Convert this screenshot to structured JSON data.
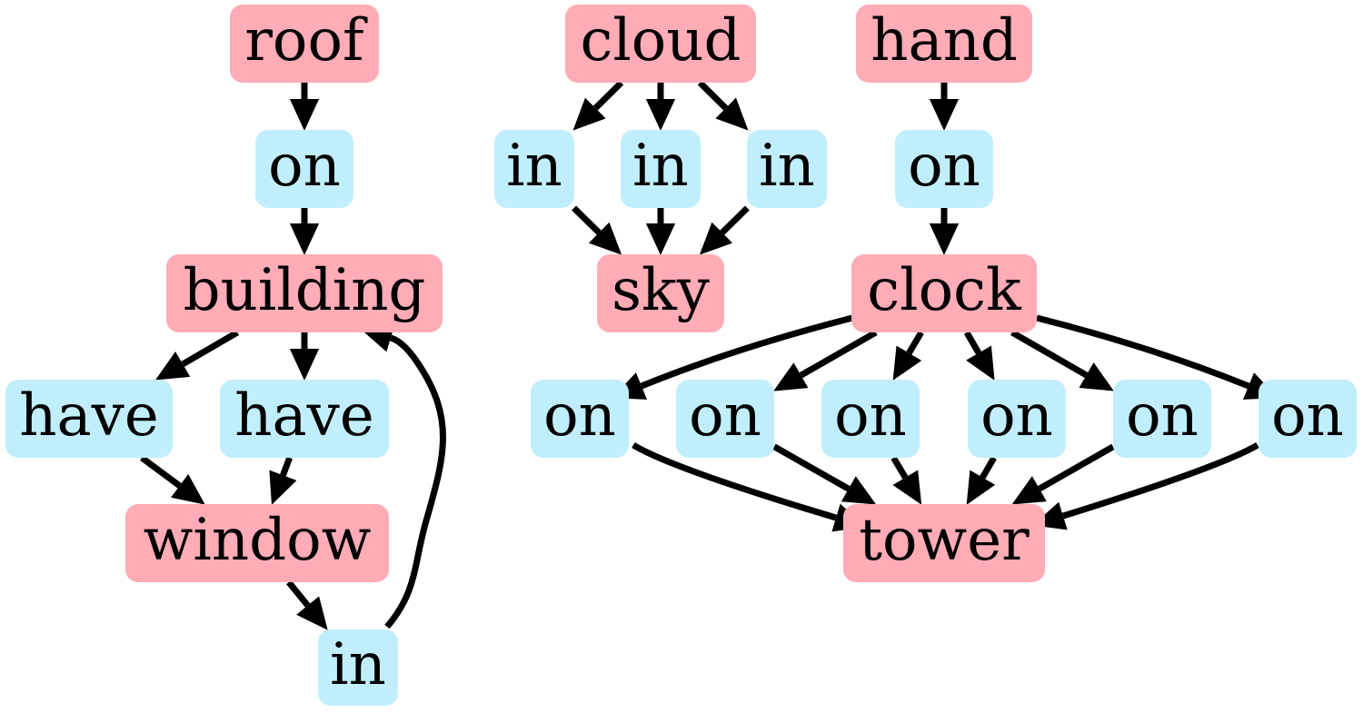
{
  "colors": {
    "object": "#ffacb6",
    "relation": "#c1eefd",
    "edge": "#000000",
    "background": "#ffffff"
  },
  "nodes": {
    "roof": {
      "label": "roof",
      "kind": "object"
    },
    "on_roof": {
      "label": "on",
      "kind": "relation"
    },
    "building": {
      "label": "building",
      "kind": "object"
    },
    "have1": {
      "label": "have",
      "kind": "relation"
    },
    "have2": {
      "label": "have",
      "kind": "relation"
    },
    "window": {
      "label": "window",
      "kind": "object"
    },
    "in_win": {
      "label": "in",
      "kind": "relation"
    },
    "cloud": {
      "label": "cloud",
      "kind": "object"
    },
    "in1": {
      "label": "in",
      "kind": "relation"
    },
    "in2": {
      "label": "in",
      "kind": "relation"
    },
    "in3": {
      "label": "in",
      "kind": "relation"
    },
    "sky": {
      "label": "sky",
      "kind": "object"
    },
    "hand": {
      "label": "hand",
      "kind": "object"
    },
    "on_hand": {
      "label": "on",
      "kind": "relation"
    },
    "clock": {
      "label": "clock",
      "kind": "object"
    },
    "on1": {
      "label": "on",
      "kind": "relation"
    },
    "on2": {
      "label": "on",
      "kind": "relation"
    },
    "on3": {
      "label": "on",
      "kind": "relation"
    },
    "on4": {
      "label": "on",
      "kind": "relation"
    },
    "on5": {
      "label": "on",
      "kind": "relation"
    },
    "on6": {
      "label": "on",
      "kind": "relation"
    },
    "tower": {
      "label": "tower",
      "kind": "object"
    }
  },
  "edges": [
    [
      "roof",
      "on_roof"
    ],
    [
      "on_roof",
      "building"
    ],
    [
      "building",
      "have1"
    ],
    [
      "building",
      "have2"
    ],
    [
      "have1",
      "window"
    ],
    [
      "have2",
      "window"
    ],
    [
      "window",
      "in_win"
    ],
    [
      "in_win",
      "building"
    ],
    [
      "cloud",
      "in1"
    ],
    [
      "cloud",
      "in2"
    ],
    [
      "cloud",
      "in3"
    ],
    [
      "in1",
      "sky"
    ],
    [
      "in2",
      "sky"
    ],
    [
      "in3",
      "sky"
    ],
    [
      "hand",
      "on_hand"
    ],
    [
      "on_hand",
      "clock"
    ],
    [
      "clock",
      "on1"
    ],
    [
      "clock",
      "on2"
    ],
    [
      "clock",
      "on3"
    ],
    [
      "clock",
      "on4"
    ],
    [
      "clock",
      "on5"
    ],
    [
      "clock",
      "on6"
    ],
    [
      "on1",
      "tower"
    ],
    [
      "on2",
      "tower"
    ],
    [
      "on3",
      "tower"
    ],
    [
      "on4",
      "tower"
    ],
    [
      "on5",
      "tower"
    ],
    [
      "on6",
      "tower"
    ]
  ]
}
